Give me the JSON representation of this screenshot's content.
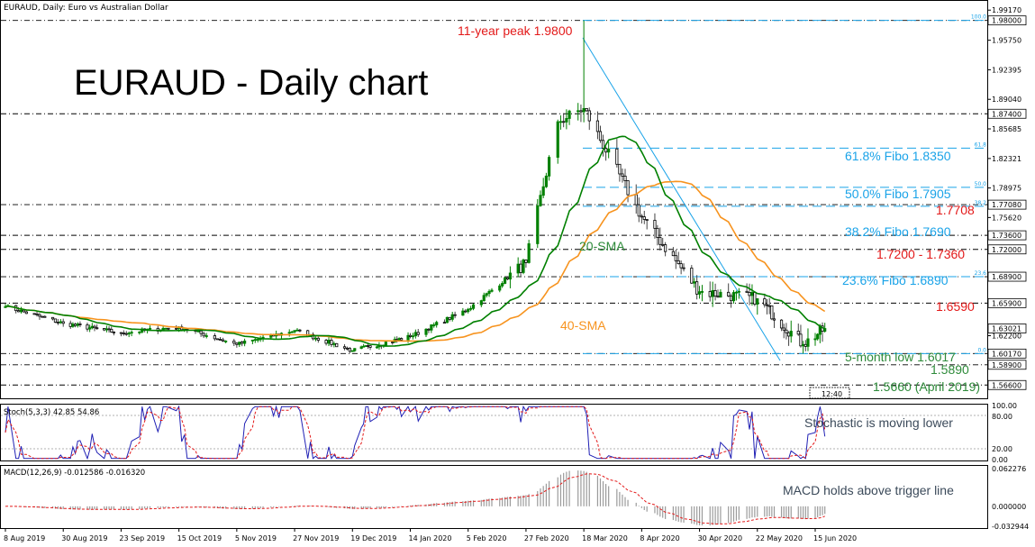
{
  "window": {
    "title": "EURAUD, Daily: Euro vs Australian Dollar"
  },
  "colors": {
    "bull": "#008000",
    "bear": "#000000",
    "sma20": "#008000",
    "sma40": "#f7931e",
    "fibo": "#1aa3e8",
    "levels": "#000000",
    "annotation_red": "#e31919",
    "annotation_blue": "#1aa3e8",
    "annotation_green": "#2e8b3a",
    "annotation_orange": "#f7931e",
    "stoch_main": "#1f1fb4",
    "stoch_signal": "#e31919",
    "macd_hist": "#9b9b9b",
    "macd_signal": "#e31919"
  },
  "chart_data": [
    {
      "type": "candlestick",
      "title": "EURAUD - Daily chart",
      "yaxis_ticks": [
        "1.99170",
        "1.98000",
        "1.95750",
        "1.92395",
        "1.89040",
        "1.87400",
        "1.85685",
        "1.82321",
        "1.78975",
        "1.77080",
        "1.75620",
        "1.73600",
        "1.72000",
        "1.68900",
        "1.65900",
        "1.63021",
        "1.62200",
        "1.60170",
        "1.58900",
        "1.56600"
      ],
      "price_tags": [
        "1.98000",
        "1.87400",
        "1.77080",
        "1.73600",
        "1.72000",
        "1.68900",
        "1.65900",
        "1.63021",
        "1.60170",
        "1.58900",
        "1.56600"
      ],
      "xaxis_labels": [
        "8 Aug 2019",
        "30 Aug 2019",
        "23 Sep 2019",
        "15 Oct 2019",
        "5 Nov 2019",
        "27 Nov 2019",
        "19 Dec 2019",
        "14 Jan 2020",
        "5 Feb 2020",
        "27 Feb 2020",
        "18 Mar 2020",
        "8 Apr 2020",
        "30 Apr 2020",
        "22 May 2020",
        "15 Jun 2020"
      ],
      "ylim": [
        1.555,
        1.995
      ],
      "key_points": [
        {
          "date": "8 Aug 2019",
          "close": 1.655
        },
        {
          "date": "30 Aug 2019",
          "close": 1.636
        },
        {
          "date": "23 Sep 2019",
          "close": 1.625
        },
        {
          "date": "15 Oct 2019",
          "close": 1.632
        },
        {
          "date": "5 Nov 2019",
          "close": 1.612
        },
        {
          "date": "27 Nov 2019",
          "close": 1.628
        },
        {
          "date": "19 Dec 2019",
          "close": 1.605
        },
        {
          "date": "14 Jan 2020",
          "close": 1.621
        },
        {
          "date": "5 Feb 2020",
          "close": 1.652
        },
        {
          "date": "27 Feb 2020",
          "close": 1.705
        },
        {
          "date": "9 Mar 2020",
          "close": 1.865
        },
        {
          "date": "18 Mar 2020",
          "high": 1.98,
          "close": 1.88
        },
        {
          "date": "8 Apr 2020",
          "close": 1.757
        },
        {
          "date": "30 Apr 2020",
          "close": 1.672
        },
        {
          "date": "22 May 2020",
          "close": 1.664
        },
        {
          "date": "10 Jun 2020",
          "low": 1.6017,
          "close": 1.612
        },
        {
          "date": "19 Jun 2020",
          "close": 1.6302
        }
      ],
      "horizontal_levels": [
        1.98,
        1.874,
        1.7708,
        1.736,
        1.72,
        1.689,
        1.659,
        1.6017,
        1.589,
        1.566
      ],
      "fibonacci": [
        {
          "ratio": "100.0",
          "level": 1.98
        },
        {
          "ratio": "61.8",
          "level": 1.835
        },
        {
          "ratio": "50.0",
          "level": 1.7905
        },
        {
          "ratio": "38.2",
          "level": 1.769
        },
        {
          "ratio": "23.6",
          "level": 1.689
        },
        {
          "ratio": "0.0",
          "level": 1.6017
        }
      ],
      "annotations": [
        {
          "text": "11-year peak 1.9800",
          "color": "red"
        },
        {
          "text": "61.8% Fibo 1.8350",
          "color": "blue"
        },
        {
          "text": "50.0% Fibo 1.7905",
          "color": "blue"
        },
        {
          "text": "1.7708",
          "color": "red"
        },
        {
          "text": "38.2% Fibo 1.7690",
          "color": "blue"
        },
        {
          "text": "20-SMA",
          "color": "green"
        },
        {
          "text": "1.7200 - 1.7360",
          "color": "red"
        },
        {
          "text": "23.6% Fibo 1.6890",
          "color": "blue"
        },
        {
          "text": "1.6590",
          "color": "red"
        },
        {
          "text": "40-SMA",
          "color": "orange"
        },
        {
          "text": "5-month low 1.6017",
          "color": "green"
        },
        {
          "text": "1.5890",
          "color": "green"
        },
        {
          "text": "1.5660 (April 2019)",
          "color": "green"
        }
      ],
      "fib_small_labels": [
        "100.0",
        "61.8",
        "50.0",
        "38.2",
        "23.6",
        "0.0"
      ],
      "time_marker": "12:40"
    },
    {
      "type": "line",
      "title": "Stoch(5,3,3) 42.85 54.86",
      "yaxis_ticks": [
        "100.00",
        "80.00",
        "20.00",
        "0.00"
      ],
      "ylim": [
        0,
        100
      ],
      "levels": [
        80,
        20
      ],
      "series": [
        {
          "name": "Stoch main",
          "last": 42.85
        },
        {
          "name": "Stoch signal",
          "last": 54.86
        }
      ],
      "annotation": "Stochastic is moving lower"
    },
    {
      "type": "bar",
      "title": "MACD(12,26,9) -0.012586 -0.016320",
      "yaxis_ticks": [
        "0.062276",
        "0.000000",
        "-0.032944"
      ],
      "ylim": [
        -0.032944,
        0.062276
      ],
      "series": [
        {
          "name": "MACD",
          "last": -0.012586
        },
        {
          "name": "Signal",
          "last": -0.01632
        }
      ],
      "annotation": "MACD holds above trigger line"
    }
  ]
}
